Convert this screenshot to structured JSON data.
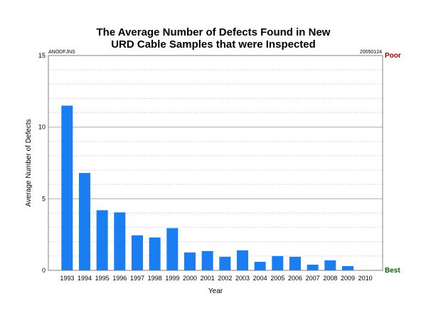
{
  "chart_data": {
    "type": "bar",
    "title_line1": "The Average Number of Defects Found in New",
    "title_line2": "URD Cable Samples that were Inspected",
    "corner_left": "ANODFJNS",
    "corner_right": "20050124",
    "xlabel": "Year",
    "ylabel": "Average Number of Defects",
    "ylim": [
      0,
      15
    ],
    "yticks": [
      0,
      5,
      10,
      15
    ],
    "grid": true,
    "scale_top_label": "Poor",
    "scale_bottom_label": "Best",
    "bar_color": "#1a7ef2",
    "scale_top_color": "#a00000",
    "scale_bottom_color": "#006000",
    "categories": [
      "1993",
      "1994",
      "1995",
      "1996",
      "1997",
      "1998",
      "1999",
      "2000",
      "2001",
      "2002",
      "2003",
      "2004",
      "2005",
      "2006",
      "2007",
      "2008",
      "2009",
      "2010"
    ],
    "values": [
      11.5,
      6.8,
      4.2,
      4.05,
      2.45,
      2.3,
      2.95,
      1.25,
      1.35,
      0.95,
      1.4,
      0.6,
      1.0,
      0.95,
      0.4,
      0.7,
      0.3,
      0
    ]
  }
}
